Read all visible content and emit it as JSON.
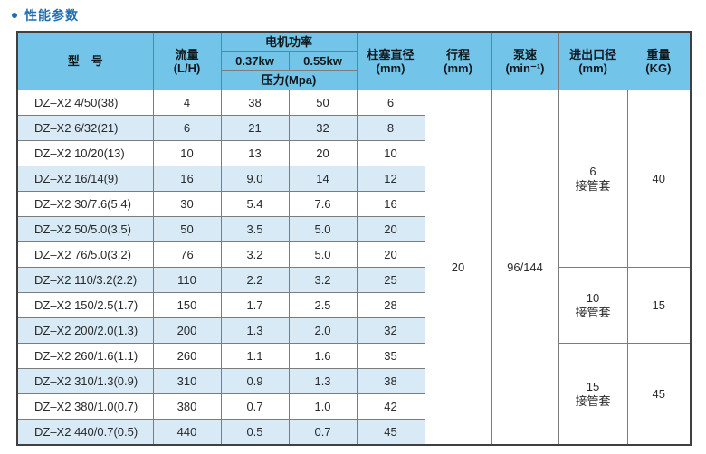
{
  "section": {
    "title": "性能参数"
  },
  "table": {
    "headers": {
      "model": "型　号",
      "flow_line1": "流量",
      "flow_line2": "(L/H)",
      "motor_power": "电机功率",
      "kw1": "0.37kw",
      "kw2": "0.55kw",
      "pressure": "压力(Mpa)",
      "plunger_line1": "柱塞直径",
      "plunger_line2": "(mm)",
      "stroke_line1": "行程",
      "stroke_line2": "(mm)",
      "speed_line1": "泵速",
      "speed_line2": "(min⁻¹)",
      "io_line1": "进出口径",
      "io_line2": "(mm)",
      "weight_line1": "重量",
      "weight_line2": "(KG)"
    },
    "rows": [
      {
        "model": "DZ–X2 4/50(38)",
        "flow": "4",
        "p037": "38",
        "p055": "50",
        "plunger": "6"
      },
      {
        "model": "DZ–X2 6/32(21)",
        "flow": "6",
        "p037": "21",
        "p055": "32",
        "plunger": "8"
      },
      {
        "model": "DZ–X2 10/20(13)",
        "flow": "10",
        "p037": "13",
        "p055": "20",
        "plunger": "10"
      },
      {
        "model": "DZ–X2 16/14(9)",
        "flow": "16",
        "p037": "9.0",
        "p055": "14",
        "plunger": "12"
      },
      {
        "model": "DZ–X2 30/7.6(5.4)",
        "flow": "30",
        "p037": "5.4",
        "p055": "7.6",
        "plunger": "16"
      },
      {
        "model": "DZ–X2 50/5.0(3.5)",
        "flow": "50",
        "p037": "3.5",
        "p055": "5.0",
        "plunger": "20"
      },
      {
        "model": "DZ–X2 76/5.0(3.2)",
        "flow": "76",
        "p037": "3.2",
        "p055": "5.0",
        "plunger": "20"
      },
      {
        "model": "DZ–X2 110/3.2(2.2)",
        "flow": "110",
        "p037": "2.2",
        "p055": "3.2",
        "plunger": "25"
      },
      {
        "model": "DZ–X2 150/2.5(1.7)",
        "flow": "150",
        "p037": "1.7",
        "p055": "2.5",
        "plunger": "28"
      },
      {
        "model": "DZ–X2 200/2.0(1.3)",
        "flow": "200",
        "p037": "1.3",
        "p055": "2.0",
        "plunger": "32"
      },
      {
        "model": "DZ–X2 260/1.6(1.1)",
        "flow": "260",
        "p037": "1.1",
        "p055": "1.6",
        "plunger": "35"
      },
      {
        "model": "DZ–X2 310/1.3(0.9)",
        "flow": "310",
        "p037": "0.9",
        "p055": "1.3",
        "plunger": "38"
      },
      {
        "model": "DZ–X2 380/1.0(0.7)",
        "flow": "380",
        "p037": "0.7",
        "p055": "1.0",
        "plunger": "42"
      },
      {
        "model": "DZ–X2 440/0.7(0.5)",
        "flow": "440",
        "p037": "0.5",
        "p055": "0.7",
        "plunger": "45"
      }
    ],
    "stroke_value": "20",
    "speed_value": "96/144",
    "port_groups": [
      {
        "size": "6",
        "label": "接管套",
        "weight": "40",
        "rows": 7
      },
      {
        "size": "10",
        "label": "接管套",
        "weight": "15",
        "rows": 3
      },
      {
        "size": "15",
        "label": "接管套",
        "weight": "45",
        "rows": 4
      }
    ]
  },
  "colors": {
    "title_color": "#1e6cb2",
    "header_bg": "#72c4e8",
    "stripe_bg": "#d7eaf6",
    "border_outer": "#404040",
    "border_inner": "#7c7c7c"
  }
}
